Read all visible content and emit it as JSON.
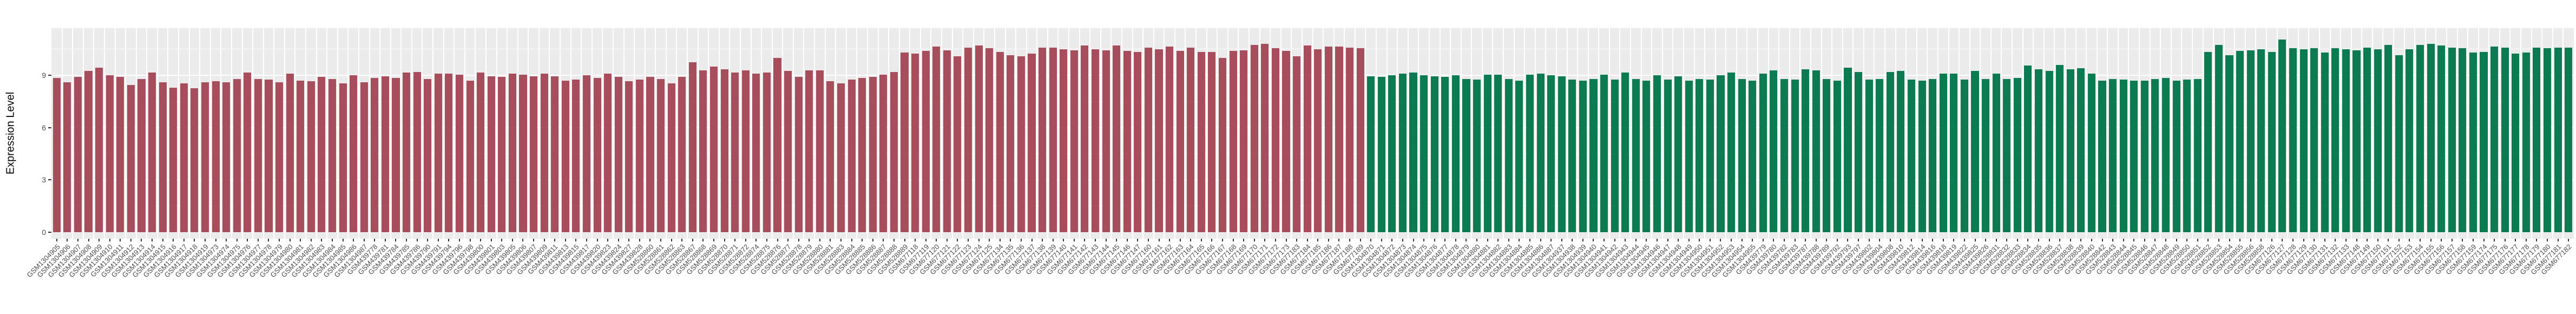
{
  "chart": {
    "y_axis": {
      "title": "Expression Level"
    }
  },
  "chart_data": {
    "type": "bar",
    "title": "",
    "xlabel": "",
    "ylabel": "Expression Level",
    "ylim": [
      0,
      11.7
    ],
    "yticks": [
      0,
      3,
      6,
      9
    ],
    "yticks_minor": [
      1.5,
      4.5,
      7.5,
      10.5
    ],
    "grid": "white major and minor gridlines on grey panel",
    "legend_position": "none",
    "panel_background": "#EBEBEB",
    "grid_color": "#FFFFFF",
    "tick_color": "#333333",
    "label_color": "#4D4D4D",
    "groups": [
      {
        "name": "group-1-red",
        "color": "#A74D5C",
        "count": 124
      },
      {
        "name": "group-2-green",
        "color": "#0C7B52",
        "count": 114
      }
    ],
    "categories": [
      "GSM1304905",
      "GSM1304906",
      "GSM1304907",
      "GSM1304908",
      "GSM1304909",
      "GSM1304910",
      "GSM1304911",
      "GSM1304912",
      "GSM1304913",
      "GSM1304914",
      "GSM1304915",
      "GSM1304916",
      "GSM1304917",
      "GSM1304918",
      "GSM1304919",
      "GSM1304973",
      "GSM1304974",
      "GSM1304975",
      "GSM1304976",
      "GSM1304977",
      "GSM1304978",
      "GSM1304979",
      "GSM1304980",
      "GSM1304981",
      "GSM1304982",
      "GSM1304983",
      "GSM1304984",
      "GSM1304985",
      "GSM1304986",
      "GSM1304987",
      "GSM439778",
      "GSM439781",
      "GSM439784",
      "GSM439785",
      "GSM439786",
      "GSM439790",
      "GSM439791",
      "GSM439794",
      "GSM439796",
      "GSM439798",
      "GSM439800",
      "GSM439801",
      "GSM439803",
      "GSM439805",
      "GSM439806",
      "GSM439807",
      "GSM439809",
      "GSM439811",
      "GSM439813",
      "GSM439815",
      "GSM439817",
      "GSM439820",
      "GSM439823",
      "GSM439824",
      "GSM439827",
      "GSM439828",
      "GSM528860",
      "GSM528861",
      "GSM528862",
      "GSM528863",
      "GSM528867",
      "GSM528868",
      "GSM528869",
      "GSM528870",
      "GSM528871",
      "GSM528872",
      "GSM528874",
      "GSM528875",
      "GSM528876",
      "GSM528877",
      "GSM528878",
      "GSM528879",
      "GSM528880",
      "GSM528881",
      "GSM528883",
      "GSM528884",
      "GSM528885",
      "GSM528886",
      "GSM528887",
      "GSM528888",
      "GSM528889",
      "GSM677118",
      "GSM677119",
      "GSM677120",
      "GSM677121",
      "GSM677122",
      "GSM677123",
      "GSM677124",
      "GSM677125",
      "GSM677134",
      "GSM677135",
      "GSM677136",
      "GSM677137",
      "GSM677138",
      "GSM677139",
      "GSM677140",
      "GSM677141",
      "GSM677142",
      "GSM677143",
      "GSM677144",
      "GSM677145",
      "GSM677146",
      "GSM677147",
      "GSM677160",
      "GSM677161",
      "GSM677162",
      "GSM677163",
      "GSM677164",
      "GSM677165",
      "GSM677166",
      "GSM677167",
      "GSM677168",
      "GSM677169",
      "GSM677170",
      "GSM677171",
      "GSM677172",
      "GSM677173",
      "GSM677183",
      "GSM677184",
      "GSM677185",
      "GSM677186",
      "GSM677187",
      "GSM677188",
      "GSM677189",
      "GSM1304870",
      "GSM1304871",
      "GSM1304872",
      "GSM1304873",
      "GSM1304874",
      "GSM1304875",
      "GSM1304876",
      "GSM1304877",
      "GSM1304878",
      "GSM1304879",
      "GSM1304880",
      "GSM1304881",
      "GSM1304882",
      "GSM1304883",
      "GSM1304884",
      "GSM1304885",
      "GSM1304886",
      "GSM1304887",
      "GSM1304937",
      "GSM1304938",
      "GSM1304939",
      "GSM1304940",
      "GSM1304941",
      "GSM1304942",
      "GSM1304943",
      "GSM1304944",
      "GSM1304945",
      "GSM1304946",
      "GSM1304947",
      "GSM1304948",
      "GSM1304949",
      "GSM1304950",
      "GSM1304951",
      "GSM1304952",
      "GSM1304953",
      "GSM1304954",
      "GSM1304955",
      "GSM439779",
      "GSM439780",
      "GSM439782",
      "GSM439783",
      "GSM439787",
      "GSM439788",
      "GSM439789",
      "GSM439792",
      "GSM439793",
      "GSM439797",
      "GSM439802",
      "GSM439804",
      "GSM439808",
      "GSM439810",
      "GSM439812",
      "GSM439814",
      "GSM439816",
      "GSM439818",
      "GSM439819",
      "GSM439822",
      "GSM439825",
      "GSM439826",
      "GSM528831",
      "GSM528832",
      "GSM528833",
      "GSM528834",
      "GSM528835",
      "GSM528836",
      "GSM528837",
      "GSM528838",
      "GSM528839",
      "GSM528840",
      "GSM528842",
      "GSM528843",
      "GSM528844",
      "GSM528845",
      "GSM528846",
      "GSM528847",
      "GSM528848",
      "GSM528849",
      "GSM528850",
      "GSM528851",
      "GSM528852",
      "GSM528853",
      "GSM528854",
      "GSM528855",
      "GSM528856",
      "GSM528858",
      "GSM677126",
      "GSM677127",
      "GSM677128",
      "GSM677129",
      "GSM677130",
      "GSM677131",
      "GSM677132",
      "GSM677133",
      "GSM677148",
      "GSM677149",
      "GSM677150",
      "GSM677151",
      "GSM677152",
      "GSM677153",
      "GSM677154",
      "GSM677155",
      "GSM677156",
      "GSM677157",
      "GSM677158",
      "GSM677159",
      "GSM677174",
      "GSM677175",
      "GSM677176",
      "GSM677177",
      "GSM677178",
      "GSM677179",
      "GSM677180",
      "GSM677181",
      "GSM677182"
    ],
    "values": [
      8.85,
      8.6,
      8.9,
      9.25,
      9.45,
      9.0,
      8.9,
      8.45,
      8.8,
      9.15,
      8.6,
      8.3,
      8.55,
      8.25,
      8.6,
      8.65,
      8.6,
      8.8,
      9.15,
      8.8,
      8.75,
      8.6,
      9.1,
      8.7,
      8.65,
      8.9,
      8.8,
      8.55,
      9.0,
      8.6,
      8.85,
      8.95,
      8.85,
      9.15,
      9.2,
      8.8,
      9.1,
      9.1,
      9.05,
      8.7,
      9.15,
      8.95,
      8.9,
      9.1,
      9.05,
      8.95,
      9.1,
      8.95,
      8.7,
      8.75,
      9.0,
      8.85,
      9.1,
      8.9,
      8.65,
      8.75,
      8.9,
      8.8,
      8.55,
      8.9,
      9.75,
      9.3,
      9.5,
      9.35,
      9.15,
      9.3,
      9.1,
      9.15,
      10.0,
      9.25,
      8.9,
      9.3,
      9.3,
      8.65,
      8.55,
      8.75,
      8.85,
      8.9,
      9.05,
      9.2,
      10.3,
      10.25,
      10.4,
      10.65,
      10.45,
      10.1,
      10.6,
      10.7,
      10.55,
      10.35,
      10.15,
      10.1,
      10.25,
      10.6,
      10.6,
      10.5,
      10.45,
      10.7,
      10.5,
      10.45,
      10.7,
      10.4,
      10.35,
      10.6,
      10.5,
      10.65,
      10.4,
      10.6,
      10.35,
      10.35,
      10.0,
      10.4,
      10.45,
      10.75,
      10.8,
      10.55,
      10.4,
      10.1,
      10.7,
      10.5,
      10.65,
      10.65,
      10.6,
      10.55,
      8.95,
      8.9,
      9.0,
      9.1,
      9.15,
      9.0,
      8.95,
      8.9,
      9.0,
      8.8,
      8.75,
      9.05,
      9.05,
      8.8,
      8.7,
      9.05,
      9.1,
      9.0,
      8.95,
      8.75,
      8.7,
      8.8,
      9.05,
      8.75,
      9.15,
      8.8,
      8.7,
      9.0,
      8.75,
      8.95,
      8.7,
      8.8,
      8.75,
      9.0,
      9.15,
      8.8,
      8.7,
      9.1,
      9.3,
      8.8,
      8.75,
      9.35,
      9.3,
      8.8,
      8.7,
      9.45,
      9.2,
      8.75,
      8.8,
      9.2,
      9.25,
      8.75,
      8.7,
      8.8,
      9.1,
      9.1,
      8.75,
      9.25,
      8.8,
      9.1,
      8.8,
      8.85,
      9.55,
      9.35,
      9.25,
      9.6,
      9.35,
      9.4,
      9.1,
      8.7,
      8.8,
      8.75,
      8.7,
      8.7,
      8.8,
      8.85,
      8.7,
      8.75,
      8.8,
      10.35,
      10.75,
      10.15,
      10.4,
      10.45,
      10.5,
      10.35,
      11.05,
      10.55,
      10.5,
      10.55,
      10.3,
      10.55,
      10.5,
      10.45,
      10.6,
      10.5,
      10.75,
      10.15,
      10.5,
      10.75,
      10.8,
      10.7,
      10.6,
      10.55,
      10.3,
      10.35,
      10.65,
      10.6,
      10.25,
      10.3,
      10.6,
      10.55,
      10.6,
      10.6
    ]
  }
}
